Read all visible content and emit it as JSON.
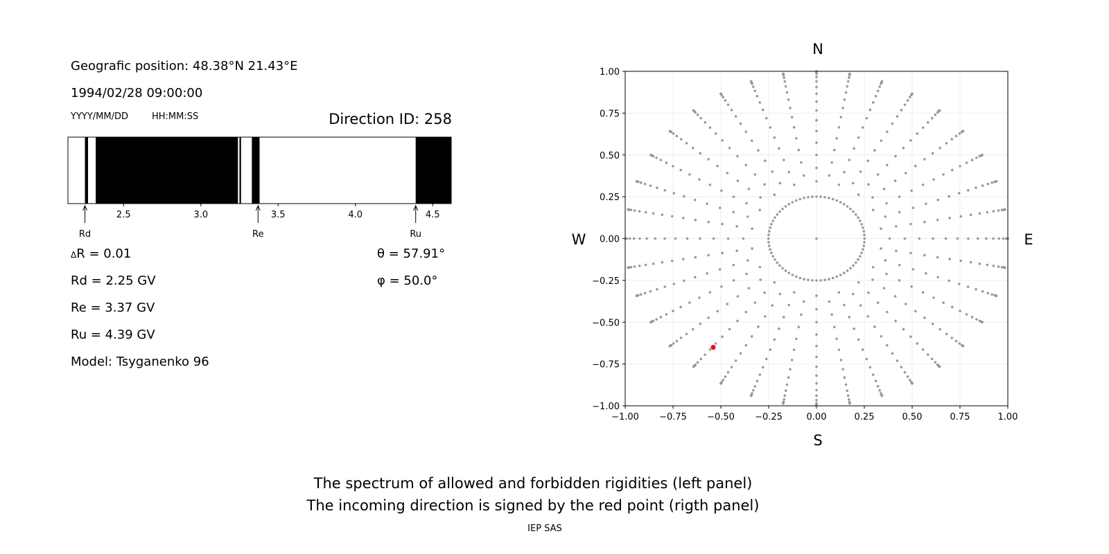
{
  "header": {
    "position": "Geografic position: 48.38°N 21.43°E",
    "datetime": "1994/02/28 09:00:00",
    "date_format": "YYYY/MM/DD",
    "time_format": "HH:MM:SS",
    "direction_id": "Direction ID: 258"
  },
  "params": {
    "dR": "R = 0.01",
    "dR_symbol": "Δ",
    "Rd": "Rd = 2.25 GV",
    "Re": "Re = 3.37 GV",
    "Ru": "Ru = 4.39 GV",
    "model": "Model: Tsyganenko 96",
    "theta": "θ = 57.91°",
    "phi": "φ = 50.0°"
  },
  "footer": {
    "line1": "The spectrum of allowed and forbidden rigidities (left panel)",
    "line2": "The incoming direction is signed by the red point (rigth panel)",
    "credit": "IEP SAS"
  },
  "chart_data": [
    {
      "type": "bar",
      "xlim": [
        2.14,
        4.62
      ],
      "xticks": [
        "2.5",
        "3.0",
        "3.5",
        "4.0",
        "4.5"
      ],
      "forbidden_color": "#000000",
      "allowed_color": "#ffffff",
      "forbidden_bands": [
        [
          2.25,
          2.27
        ],
        [
          2.32,
          3.24
        ],
        [
          3.25,
          3.26
        ],
        [
          3.33,
          3.38
        ],
        [
          4.39,
          4.62
        ]
      ],
      "markers": [
        {
          "label": "Rd",
          "value": 2.25
        },
        {
          "label": "Re",
          "value": 3.37
        },
        {
          "label": "Ru",
          "value": 4.39
        }
      ]
    },
    {
      "type": "scatter",
      "xlim": [
        -1,
        1
      ],
      "ylim": [
        -1,
        1
      ],
      "grid": true,
      "ticks": [
        "−1.00",
        "−0.75",
        "−0.50",
        "−0.25",
        "0.00",
        "0.25",
        "0.50",
        "0.75",
        "1.00"
      ],
      "directions": {
        "N": "N",
        "S": "S",
        "W": "W",
        "E": "E"
      },
      "dot_color": "#999999",
      "highlight_color": "#ff0000",
      "grid_azimuth_step_deg": 10,
      "grid_zenith_deg": [
        15,
        20,
        25,
        30,
        35,
        40,
        45,
        50,
        55,
        60,
        65,
        70,
        75,
        80,
        83,
        85,
        87,
        88,
        89,
        90
      ],
      "highlight": {
        "x": -0.54,
        "y": -0.65
      }
    }
  ]
}
